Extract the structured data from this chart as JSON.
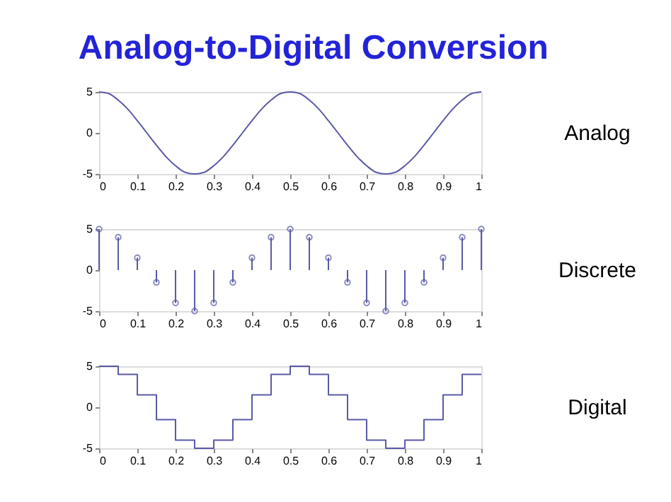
{
  "chart_data": [
    {
      "type": "line",
      "title": "Analog-to-Digital Conversion",
      "annotations": [
        "Analog"
      ],
      "color": "#5a5aa8",
      "x": [
        0,
        0.025,
        0.05,
        0.075,
        0.1,
        0.125,
        0.15,
        0.175,
        0.2,
        0.225,
        0.25,
        0.275,
        0.3,
        0.325,
        0.35,
        0.375,
        0.4,
        0.425,
        0.45,
        0.475,
        0.5,
        0.525,
        0.55,
        0.575,
        0.6,
        0.625,
        0.65,
        0.675,
        0.7,
        0.725,
        0.75,
        0.775,
        0.8,
        0.825,
        0.85,
        0.875,
        0.9,
        0.925,
        0.95,
        0.975,
        1
      ],
      "values": [
        5,
        4.8,
        4,
        2.9,
        1.5,
        0,
        -1.5,
        -2.9,
        -4,
        -4.8,
        -5,
        -4.8,
        -4,
        -2.9,
        -1.5,
        0,
        1.5,
        2.9,
        4,
        4.8,
        5,
        4.8,
        4,
        2.9,
        1.5,
        0,
        -1.5,
        -2.9,
        -4,
        -4.8,
        -5,
        -4.8,
        -4,
        -2.9,
        -1.5,
        0,
        1.5,
        2.9,
        4,
        4.8,
        5
      ],
      "xlim": [
        0,
        1
      ],
      "xticks": [
        0,
        0.1,
        0.2,
        0.3,
        0.4,
        0.5,
        0.6,
        0.7,
        0.8,
        0.9,
        1
      ],
      "ylim": [
        -5,
        5
      ],
      "yticks": [
        -5,
        0,
        5
      ],
      "grid": false
    },
    {
      "type": "lollipop",
      "annotations": [
        "Discrete"
      ],
      "color": "#5a5aa8",
      "marker": "circle",
      "x": [
        0,
        0.05,
        0.1,
        0.15,
        0.2,
        0.25,
        0.3,
        0.35,
        0.4,
        0.45,
        0.5,
        0.55,
        0.6,
        0.65,
        0.7,
        0.75,
        0.8,
        0.85,
        0.9,
        0.95,
        1
      ],
      "values": [
        5,
        4,
        1.5,
        -1.5,
        -4,
        -5,
        -4,
        -1.5,
        1.5,
        4,
        5,
        4,
        1.5,
        -1.5,
        -4,
        -5,
        -4,
        -1.5,
        1.5,
        4,
        5
      ],
      "xlim": [
        0,
        1
      ],
      "xticks": [
        0,
        0.1,
        0.2,
        0.3,
        0.4,
        0.5,
        0.6,
        0.7,
        0.8,
        0.9,
        1
      ],
      "ylim": [
        -5,
        5
      ],
      "yticks": [
        -5,
        0,
        5
      ],
      "grid": false
    },
    {
      "type": "step",
      "annotations": [
        "Digital"
      ],
      "color": "#5a5aa8",
      "x": [
        0,
        0.05,
        0.1,
        0.15,
        0.2,
        0.25,
        0.3,
        0.35,
        0.4,
        0.45,
        0.5,
        0.55,
        0.6,
        0.65,
        0.7,
        0.75,
        0.8,
        0.85,
        0.9,
        0.95,
        1
      ],
      "values": [
        5,
        4,
        1.5,
        -1.5,
        -4,
        -5,
        -4,
        -1.5,
        1.5,
        4,
        5,
        4,
        1.5,
        -1.5,
        -4,
        -5,
        -4,
        -1.5,
        1.5,
        4,
        4
      ],
      "xlim": [
        0,
        1
      ],
      "xticks": [
        0,
        0.1,
        0.2,
        0.3,
        0.4,
        0.5,
        0.6,
        0.7,
        0.8,
        0.9,
        1
      ],
      "ylim": [
        -5,
        5
      ],
      "yticks": [
        -5,
        0,
        5
      ],
      "grid": false
    }
  ]
}
